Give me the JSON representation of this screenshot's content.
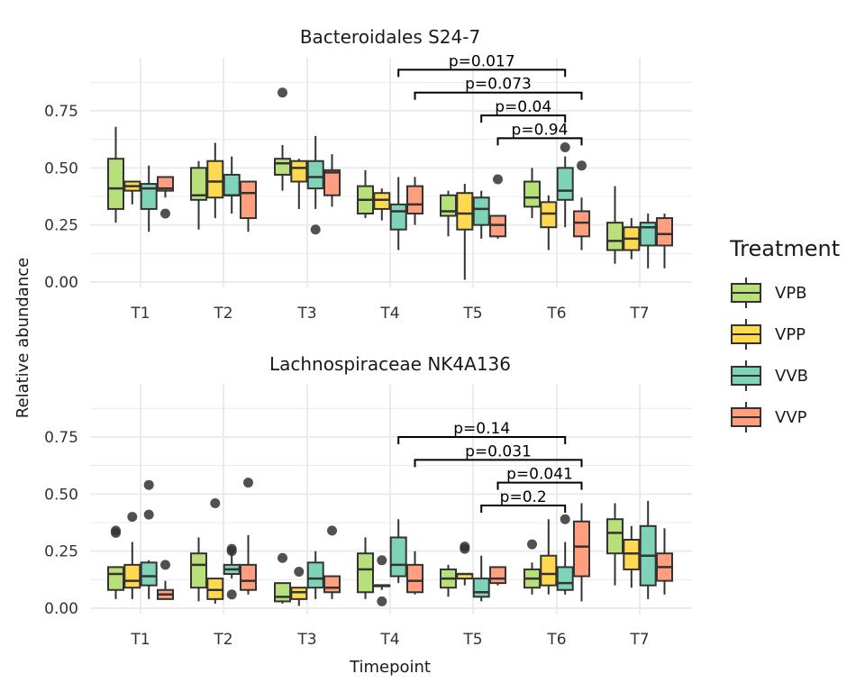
{
  "chart_data": [
    {
      "type": "boxplot",
      "title": "Bacteroidales S24-7",
      "categories": [
        "T1",
        "T2",
        "T3",
        "T4",
        "T5",
        "T6",
        "T7"
      ],
      "ylim": [
        0,
        0.95
      ],
      "yticks": [
        0.0,
        0.25,
        0.5,
        0.75
      ],
      "yticklabels": [
        "0.00",
        "0.25",
        "0.50",
        "0.75"
      ],
      "series": [
        {
          "name": "VPB",
          "boxes": [
            {
              "min": 0.26,
              "q1": 0.32,
              "median": 0.41,
              "q3": 0.54,
              "max": 0.68,
              "outliers": []
            },
            {
              "min": 0.23,
              "q1": 0.36,
              "median": 0.38,
              "q3": 0.5,
              "max": 0.53,
              "outliers": []
            },
            {
              "min": 0.4,
              "q1": 0.47,
              "median": 0.52,
              "q3": 0.54,
              "max": 0.6,
              "outliers": [
                0.83
              ]
            },
            {
              "min": 0.28,
              "q1": 0.3,
              "median": 0.36,
              "q3": 0.42,
              "max": 0.49,
              "outliers": []
            },
            {
              "min": 0.2,
              "q1": 0.29,
              "median": 0.31,
              "q3": 0.38,
              "max": 0.4,
              "outliers": []
            },
            {
              "min": 0.28,
              "q1": 0.33,
              "median": 0.37,
              "q3": 0.44,
              "max": 0.5,
              "outliers": []
            },
            {
              "min": 0.08,
              "q1": 0.14,
              "median": 0.18,
              "q3": 0.26,
              "max": 0.42,
              "outliers": []
            }
          ]
        },
        {
          "name": "VPP",
          "boxes": [
            {
              "min": 0.34,
              "q1": 0.4,
              "median": 0.42,
              "q3": 0.44,
              "max": 0.44,
              "outliers": []
            },
            {
              "min": 0.28,
              "q1": 0.37,
              "median": 0.44,
              "q3": 0.53,
              "max": 0.61,
              "outliers": []
            },
            {
              "min": 0.32,
              "q1": 0.44,
              "median": 0.5,
              "q3": 0.53,
              "max": 0.54,
              "outliers": []
            },
            {
              "min": 0.27,
              "q1": 0.32,
              "median": 0.36,
              "q3": 0.39,
              "max": 0.41,
              "outliers": []
            },
            {
              "min": 0.01,
              "q1": 0.23,
              "median": 0.3,
              "q3": 0.39,
              "max": 0.43,
              "outliers": []
            },
            {
              "min": 0.14,
              "q1": 0.24,
              "median": 0.3,
              "q3": 0.35,
              "max": 0.38,
              "outliers": []
            },
            {
              "min": 0.1,
              "q1": 0.14,
              "median": 0.19,
              "q3": 0.24,
              "max": 0.28,
              "outliers": []
            }
          ]
        },
        {
          "name": "VVB",
          "boxes": [
            {
              "min": 0.22,
              "q1": 0.32,
              "median": 0.41,
              "q3": 0.43,
              "max": 0.51,
              "outliers": []
            },
            {
              "min": 0.3,
              "q1": 0.38,
              "median": 0.38,
              "q3": 0.47,
              "max": 0.55,
              "outliers": []
            },
            {
              "min": 0.32,
              "q1": 0.41,
              "median": 0.46,
              "q3": 0.53,
              "max": 0.64,
              "outliers": [
                0.23
              ]
            },
            {
              "min": 0.14,
              "q1": 0.23,
              "median": 0.31,
              "q3": 0.34,
              "max": 0.46,
              "outliers": []
            },
            {
              "min": 0.19,
              "q1": 0.25,
              "median": 0.32,
              "q3": 0.37,
              "max": 0.4,
              "outliers": []
            },
            {
              "min": 0.24,
              "q1": 0.36,
              "median": 0.4,
              "q3": 0.5,
              "max": 0.55,
              "outliers": [
                0.59
              ]
            },
            {
              "min": 0.06,
              "q1": 0.16,
              "median": 0.24,
              "q3": 0.26,
              "max": 0.3,
              "outliers": []
            }
          ]
        },
        {
          "name": "VVP",
          "boxes": [
            {
              "min": 0.37,
              "q1": 0.4,
              "median": 0.41,
              "q3": 0.46,
              "max": 0.46,
              "outliers": [
                0.3
              ]
            },
            {
              "min": 0.22,
              "q1": 0.28,
              "median": 0.39,
              "q3": 0.44,
              "max": 0.44,
              "outliers": []
            },
            {
              "min": 0.33,
              "q1": 0.38,
              "median": 0.48,
              "q3": 0.49,
              "max": 0.56,
              "outliers": []
            },
            {
              "min": 0.25,
              "q1": 0.3,
              "median": 0.34,
              "q3": 0.42,
              "max": 0.46,
              "outliers": []
            },
            {
              "min": 0.19,
              "q1": 0.2,
              "median": 0.25,
              "q3": 0.29,
              "max": 0.29,
              "outliers": [
                0.45
              ]
            },
            {
              "min": 0.14,
              "q1": 0.2,
              "median": 0.26,
              "q3": 0.31,
              "max": 0.37,
              "outliers": [
                0.51
              ]
            },
            {
              "min": 0.06,
              "q1": 0.16,
              "median": 0.21,
              "q3": 0.28,
              "max": 0.3,
              "outliers": []
            }
          ]
        }
      ],
      "annotations": [
        {
          "label": "p=0.017",
          "x_from": "T4 VVB",
          "x_to": "T6 VVB",
          "y": 0.93
        },
        {
          "label": "p=0.073",
          "x_from": "T4 VVP",
          "x_to": "T6 VVP",
          "y": 0.83
        },
        {
          "label": "p=0.04",
          "x_from": "T5 VVB",
          "x_to": "T6 VVB",
          "y": 0.73
        },
        {
          "label": "p=0.94",
          "x_from": "T5 VVP",
          "x_to": "T6 VVP",
          "y": 0.63
        }
      ]
    },
    {
      "type": "boxplot",
      "title": "Lachnospiraceae NK4A136",
      "categories": [
        "T1",
        "T2",
        "T3",
        "T4",
        "T5",
        "T6",
        "T7"
      ],
      "ylim": [
        0,
        0.95
      ],
      "yticks": [
        0.0,
        0.25,
        0.5,
        0.75
      ],
      "yticklabels": [
        "0.00",
        "0.25",
        "0.50",
        "0.75"
      ],
      "series": [
        {
          "name": "VPB",
          "boxes": [
            {
              "min": 0.04,
              "q1": 0.08,
              "median": 0.15,
              "q3": 0.18,
              "max": 0.18,
              "outliers": [
                0.34,
                0.33
              ]
            },
            {
              "min": 0.03,
              "q1": 0.09,
              "median": 0.19,
              "q3": 0.24,
              "max": 0.31,
              "outliers": []
            },
            {
              "min": 0.02,
              "q1": 0.03,
              "median": 0.05,
              "q3": 0.11,
              "max": 0.11,
              "outliers": [
                0.22
              ]
            },
            {
              "min": 0.04,
              "q1": 0.07,
              "median": 0.17,
              "q3": 0.24,
              "max": 0.31,
              "outliers": []
            },
            {
              "min": 0.05,
              "q1": 0.09,
              "median": 0.13,
              "q3": 0.17,
              "max": 0.19,
              "outliers": []
            },
            {
              "min": 0.06,
              "q1": 0.09,
              "median": 0.13,
              "q3": 0.17,
              "max": 0.2,
              "outliers": [
                0.28
              ]
            },
            {
              "min": 0.1,
              "q1": 0.24,
              "median": 0.33,
              "q3": 0.39,
              "max": 0.46,
              "outliers": []
            }
          ]
        },
        {
          "name": "VPP",
          "boxes": [
            {
              "min": 0.04,
              "q1": 0.09,
              "median": 0.12,
              "q3": 0.19,
              "max": 0.29,
              "outliers": [
                0.4
              ]
            },
            {
              "min": 0.02,
              "q1": 0.04,
              "median": 0.08,
              "q3": 0.13,
              "max": 0.13,
              "outliers": [
                0.46
              ]
            },
            {
              "min": 0.01,
              "q1": 0.04,
              "median": 0.07,
              "q3": 0.09,
              "max": 0.09,
              "outliers": [
                0.16
              ]
            },
            {
              "min": 0.08,
              "q1": 0.1,
              "median": 0.1,
              "q3": 0.1,
              "max": 0.1,
              "outliers": [
                0.21,
                0.03
              ]
            },
            {
              "min": 0.1,
              "q1": 0.13,
              "median": 0.15,
              "q3": 0.15,
              "max": 0.15,
              "outliers": [
                0.27,
                0.26
              ]
            },
            {
              "min": 0.06,
              "q1": 0.1,
              "median": 0.15,
              "q3": 0.23,
              "max": 0.39,
              "outliers": []
            },
            {
              "min": 0.09,
              "q1": 0.17,
              "median": 0.24,
              "q3": 0.3,
              "max": 0.36,
              "outliers": []
            }
          ]
        },
        {
          "name": "VVB",
          "boxes": [
            {
              "min": 0.04,
              "q1": 0.1,
              "median": 0.14,
              "q3": 0.2,
              "max": 0.21,
              "outliers": [
                0.54,
                0.41
              ]
            },
            {
              "min": 0.13,
              "q1": 0.15,
              "median": 0.17,
              "q3": 0.19,
              "max": 0.25,
              "outliers": [
                0.26,
                0.25,
                0.06
              ]
            },
            {
              "min": 0.04,
              "q1": 0.09,
              "median": 0.13,
              "q3": 0.2,
              "max": 0.25,
              "outliers": []
            },
            {
              "min": 0.11,
              "q1": 0.14,
              "median": 0.19,
              "q3": 0.31,
              "max": 0.39,
              "outliers": []
            },
            {
              "min": 0.03,
              "q1": 0.05,
              "median": 0.07,
              "q3": 0.13,
              "max": 0.23,
              "outliers": []
            },
            {
              "min": 0.06,
              "q1": 0.08,
              "median": 0.11,
              "q3": 0.18,
              "max": 0.29,
              "outliers": [
                0.39
              ]
            },
            {
              "min": 0.04,
              "q1": 0.1,
              "median": 0.23,
              "q3": 0.36,
              "max": 0.47,
              "outliers": []
            }
          ]
        },
        {
          "name": "VVP",
          "boxes": [
            {
              "min": 0.04,
              "q1": 0.04,
              "median": 0.06,
              "q3": 0.08,
              "max": 0.12,
              "outliers": [
                0.19
              ]
            },
            {
              "min": 0.06,
              "q1": 0.08,
              "median": 0.12,
              "q3": 0.19,
              "max": 0.32,
              "outliers": [
                0.55
              ]
            },
            {
              "min": 0.04,
              "q1": 0.07,
              "median": 0.09,
              "q3": 0.14,
              "max": 0.14,
              "outliers": [
                0.34
              ]
            },
            {
              "min": 0.06,
              "q1": 0.07,
              "median": 0.12,
              "q3": 0.19,
              "max": 0.25,
              "outliers": []
            },
            {
              "min": 0.1,
              "q1": 0.11,
              "median": 0.13,
              "q3": 0.18,
              "max": 0.18,
              "outliers": []
            },
            {
              "min": 0.03,
              "q1": 0.14,
              "median": 0.27,
              "q3": 0.38,
              "max": 0.46,
              "outliers": []
            },
            {
              "min": 0.06,
              "q1": 0.12,
              "median": 0.18,
              "q3": 0.24,
              "max": 0.35,
              "outliers": []
            }
          ]
        }
      ],
      "annotations": [
        {
          "label": "p=0.14",
          "x_from": "T4 VVB",
          "x_to": "T6 VVB",
          "y": 0.75
        },
        {
          "label": "p=0.031",
          "x_from": "T4 VVP",
          "x_to": "T6 VVP",
          "y": 0.65
        },
        {
          "label": "p=0.041",
          "x_from": "T5 VVP",
          "x_to": "T6 VVP",
          "y": 0.55
        },
        {
          "label": "p=0.2",
          "x_from": "T5 VVB",
          "x_to": "T6 VVB",
          "y": 0.45
        }
      ]
    }
  ],
  "xlabel": "Timepoint",
  "ylabel": "Relative abundance",
  "legend": {
    "title": "Treatment",
    "placement": "right",
    "items": [
      {
        "label": "VPB",
        "color": "#b8e07a"
      },
      {
        "label": "VPP",
        "color": "#ffd94f"
      },
      {
        "label": "VVB",
        "color": "#7fd3b8"
      },
      {
        "label": "VVP",
        "color": "#ff9f80"
      }
    ]
  },
  "colors": {
    "VPB": "#b8e07a",
    "VPP": "#ffd94f",
    "VVB": "#7fd3b8",
    "VVP": "#ff9f80",
    "grid": "#ebebeb",
    "box_outline": "#333333"
  }
}
